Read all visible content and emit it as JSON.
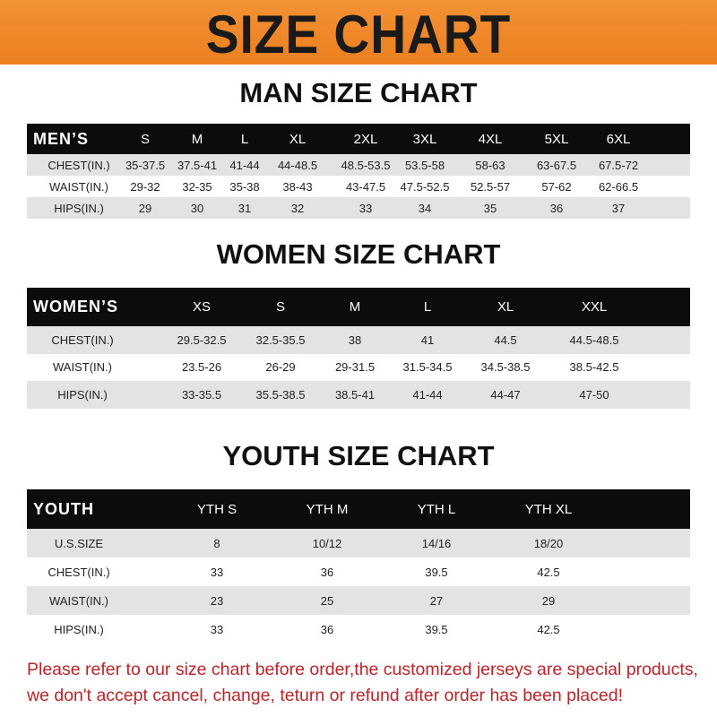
{
  "title": "SIZE CHART",
  "men": {
    "title": "MAN SIZE CHART",
    "header": "MEN’S",
    "sizes": [
      "S",
      "M",
      "L",
      "XL",
      "2XL",
      "3XL",
      "4XL",
      "5XL",
      "6XL"
    ],
    "rows": [
      {
        "label": "CHEST(IN.)",
        "values": [
          "35-37.5",
          "37.5-41",
          "41-44",
          "44-48.5",
          "48.5-53.5",
          "53.5-58",
          "58-63",
          "63-67.5",
          "67.5-72"
        ]
      },
      {
        "label": "WAIST(IN.)",
        "values": [
          "29-32",
          "32-35",
          "35-38",
          "38-43",
          "43-47.5",
          "47.5-52.5",
          "52.5-57",
          "57-62",
          "62-66.5"
        ]
      },
      {
        "label": "HIPS(IN.)",
        "values": [
          "29",
          "30",
          "31",
          "32",
          "33",
          "34",
          "35",
          "36",
          "37"
        ]
      }
    ]
  },
  "women": {
    "title": "WOMEN SIZE CHART",
    "header": "WOMEN’S",
    "sizes": [
      "XS",
      "S",
      "M",
      "L",
      "XL",
      "XXL"
    ],
    "rows": [
      {
        "label": "CHEST(IN.)",
        "values": [
          "29.5-32.5",
          "32.5-35.5",
          "38",
          "41",
          "44.5",
          "44.5-48.5"
        ]
      },
      {
        "label": "WAIST(IN.)",
        "values": [
          "23.5-26",
          "26-29",
          "29-31.5",
          "31.5-34.5",
          "34.5-38.5",
          "38.5-42.5"
        ]
      },
      {
        "label": "HIPS(IN.)",
        "values": [
          "33-35.5",
          "35.5-38.5",
          "38.5-41",
          "41-44",
          "44-47",
          "47-50"
        ]
      }
    ]
  },
  "youth": {
    "title": "YOUTH SIZE CHART",
    "header": "YOUTH",
    "sizes": [
      "YTH S",
      "YTH M",
      "YTH L",
      "YTH XL"
    ],
    "rows": [
      {
        "label": "U.S.SIZE",
        "values": [
          "8",
          "10/12",
          "14/16",
          "18/20"
        ]
      },
      {
        "label": "CHEST(IN.)",
        "values": [
          "33",
          "36",
          "39.5",
          "42.5"
        ]
      },
      {
        "label": "WAIST(IN.)",
        "values": [
          "23",
          "25",
          "27",
          "29"
        ]
      },
      {
        "label": "HIPS(IN.)",
        "values": [
          "33",
          "36",
          "39.5",
          "42.5"
        ]
      }
    ]
  },
  "footer": {
    "line1": "Please refer to our size chart before order,the customized jerseys are special products,",
    "line2": "we don't accept cancel, change, teturn or refund after order has been placed!"
  },
  "colors": {
    "banner": "#ef8a2c",
    "header_row": "#0c0c0c",
    "stripe": "#e3e3e3",
    "footer_text": "#b8262b"
  }
}
